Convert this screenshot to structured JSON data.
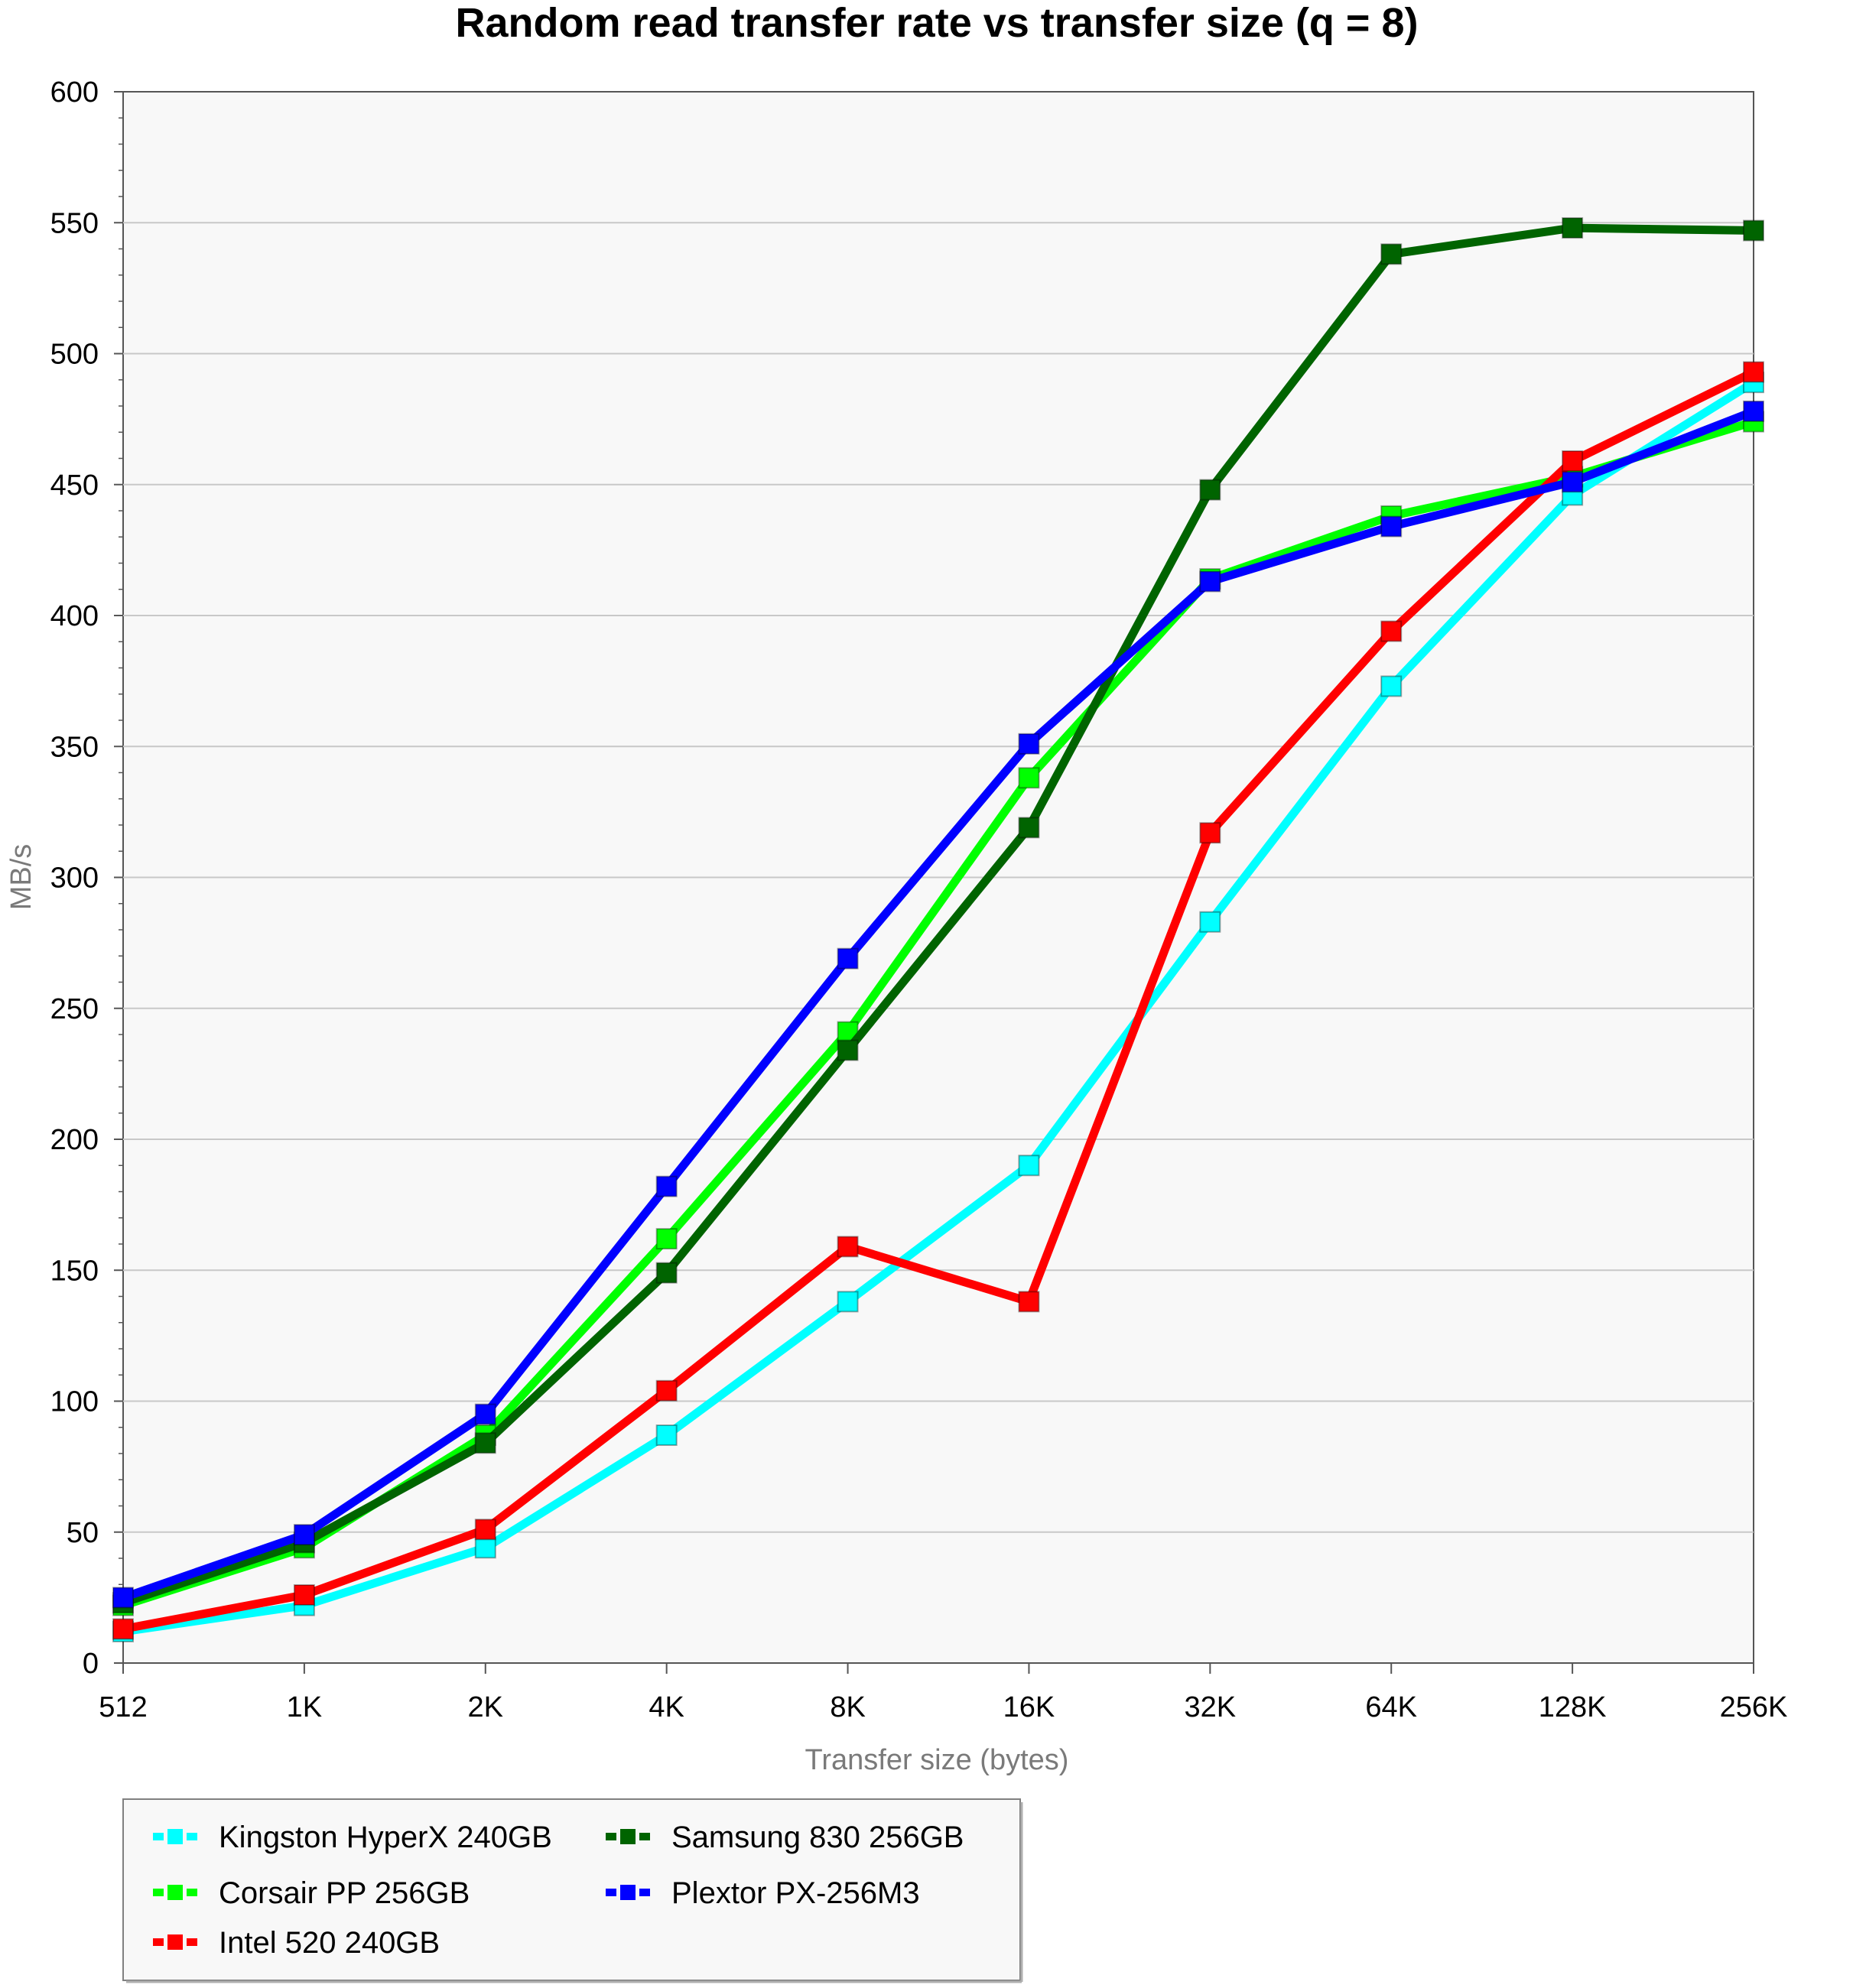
{
  "chart_data": {
    "type": "line",
    "title": "Random read transfer rate vs transfer size (q = 8)",
    "xlabel": "Transfer size (bytes)",
    "ylabel": "MB/s",
    "categories": [
      "512",
      "1K",
      "2K",
      "4K",
      "8K",
      "16K",
      "32K",
      "64K",
      "128K",
      "256K"
    ],
    "ylim": [
      0,
      600
    ],
    "yticks": [
      0,
      50,
      100,
      150,
      200,
      250,
      300,
      350,
      400,
      450,
      500,
      550,
      600
    ],
    "grid": true,
    "legend_position": "bottom-left",
    "series": [
      {
        "name": "Kingston HyperX 240GB",
        "color": "#00ffff",
        "values": [
          12,
          22,
          44,
          87,
          138,
          190,
          283,
          373,
          446,
          489
        ]
      },
      {
        "name": "Corsair PP 256GB",
        "color": "#00ff00",
        "values": [
          22,
          44,
          87,
          162,
          241,
          338,
          414,
          438,
          453,
          474
        ]
      },
      {
        "name": "Intel 520 240GB",
        "color": "#ff0000",
        "values": [
          13,
          26,
          51,
          104,
          159,
          138,
          317,
          394,
          459,
          493
        ]
      },
      {
        "name": "Samsung 830 256GB",
        "color": "#006400",
        "values": [
          23,
          46,
          84,
          149,
          234,
          319,
          448,
          538,
          548,
          547
        ]
      },
      {
        "name": "Plextor PX-256M3",
        "color": "#0000ff",
        "values": [
          25,
          49,
          95,
          182,
          269,
          351,
          413,
          434,
          451,
          478
        ]
      }
    ]
  }
}
